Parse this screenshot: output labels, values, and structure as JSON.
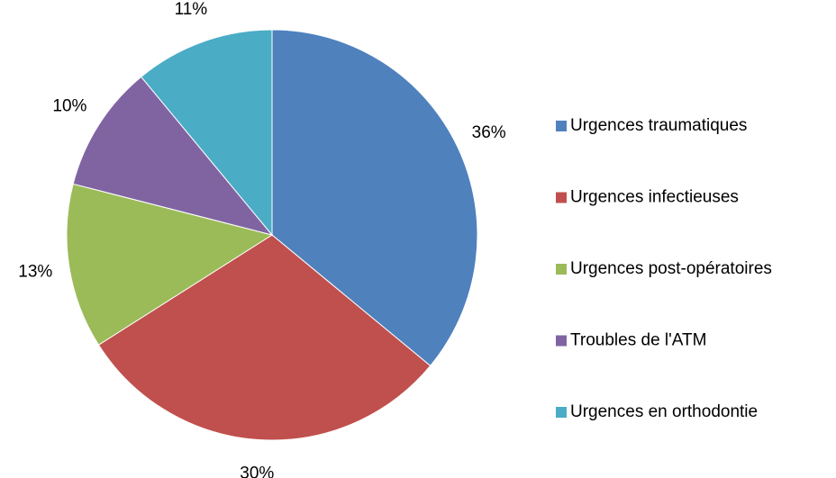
{
  "chart_data": {
    "type": "pie",
    "categories": [
      "Urgences traumatiques",
      "Urgences infectieuses",
      "Urgences post-opératoires",
      "Troubles de l'ATM",
      "Urgences en orthodontie"
    ],
    "values": [
      36,
      30,
      13,
      10,
      11
    ],
    "value_labels": [
      "36%",
      "30%",
      "13%",
      "10%",
      "11%"
    ],
    "colors": [
      "#4f81bd",
      "#c0504d",
      "#9bbb59",
      "#8064a2",
      "#4bacc6"
    ],
    "legend": "right"
  }
}
